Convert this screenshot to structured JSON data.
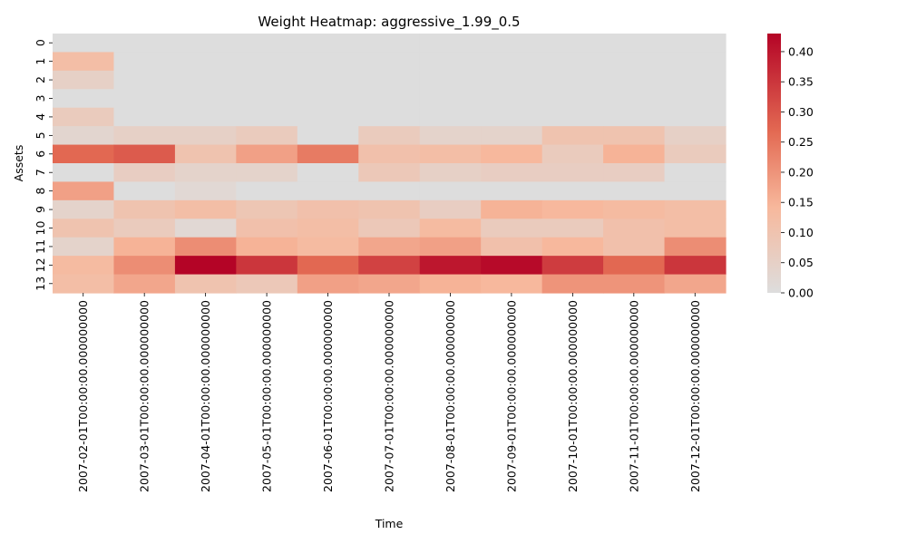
{
  "chart_data": {
    "type": "heatmap",
    "title": "Weight Heatmap: aggressive_1.99_0.5",
    "xlabel": "Time",
    "ylabel": "Assets",
    "x": [
      "2007-02-01T00:00:00.000000000",
      "2007-03-01T00:00:00.000000000",
      "2007-04-01T00:00:00.000000000",
      "2007-05-01T00:00:00.000000000",
      "2007-06-01T00:00:00.000000000",
      "2007-07-01T00:00:00.000000000",
      "2007-08-01T00:00:00.000000000",
      "2007-09-01T00:00:00.000000000",
      "2007-10-01T00:00:00.000000000",
      "2007-11-01T00:00:00.000000000",
      "2007-12-01T00:00:00.000000000"
    ],
    "y": [
      "0",
      "1",
      "2",
      "3",
      "4",
      "5",
      "6",
      "7",
      "8",
      "9",
      "10",
      "11",
      "12",
      "13"
    ],
    "values": [
      [
        0.0,
        0.0,
        0.0,
        0.0,
        0.0,
        0.0,
        0.0,
        0.0,
        0.0,
        0.0,
        0.0
      ],
      [
        0.12,
        0.0,
        0.0,
        0.0,
        0.0,
        0.0,
        0.0,
        0.0,
        0.0,
        0.0,
        0.0
      ],
      [
        0.05,
        0.0,
        0.0,
        0.0,
        0.0,
        0.0,
        0.0,
        0.0,
        0.0,
        0.0,
        0.0
      ],
      [
        0.0,
        0.0,
        0.0,
        0.0,
        0.0,
        0.0,
        0.0,
        0.0,
        0.0,
        0.0,
        0.0
      ],
      [
        0.07,
        0.0,
        0.0,
        0.0,
        0.0,
        0.0,
        0.0,
        0.0,
        0.0,
        0.0,
        0.0
      ],
      [
        0.03,
        0.05,
        0.05,
        0.07,
        0.0,
        0.07,
        0.04,
        0.04,
        0.1,
        0.1,
        0.05
      ],
      [
        0.27,
        0.29,
        0.1,
        0.18,
        0.24,
        0.11,
        0.12,
        0.14,
        0.07,
        0.15,
        0.07
      ],
      [
        0.0,
        0.06,
        0.04,
        0.04,
        0.0,
        0.08,
        0.05,
        0.06,
        0.06,
        0.06,
        0.0
      ],
      [
        0.18,
        0.0,
        0.02,
        0.0,
        0.0,
        0.0,
        0.0,
        0.0,
        0.0,
        0.0,
        0.0
      ],
      [
        0.04,
        0.1,
        0.12,
        0.09,
        0.11,
        0.1,
        0.06,
        0.15,
        0.14,
        0.13,
        0.12
      ],
      [
        0.1,
        0.07,
        0.02,
        0.11,
        0.12,
        0.08,
        0.13,
        0.07,
        0.07,
        0.11,
        0.12
      ],
      [
        0.04,
        0.15,
        0.21,
        0.15,
        0.13,
        0.17,
        0.18,
        0.11,
        0.14,
        0.11,
        0.21
      ],
      [
        0.13,
        0.21,
        0.43,
        0.35,
        0.27,
        0.33,
        0.4,
        0.42,
        0.34,
        0.27,
        0.35
      ],
      [
        0.12,
        0.17,
        0.1,
        0.08,
        0.18,
        0.17,
        0.15,
        0.14,
        0.2,
        0.2,
        0.17
      ]
    ],
    "zlim": [
      0.0,
      0.43
    ],
    "colorbar_ticks": [
      "0.00",
      "0.05",
      "0.10",
      "0.15",
      "0.20",
      "0.25",
      "0.30",
      "0.35",
      "0.40"
    ],
    "colormap": [
      "#dddddd",
      "#f7b89c",
      "#b40426"
    ],
    "grid": false,
    "legend": "colorbar-right"
  }
}
